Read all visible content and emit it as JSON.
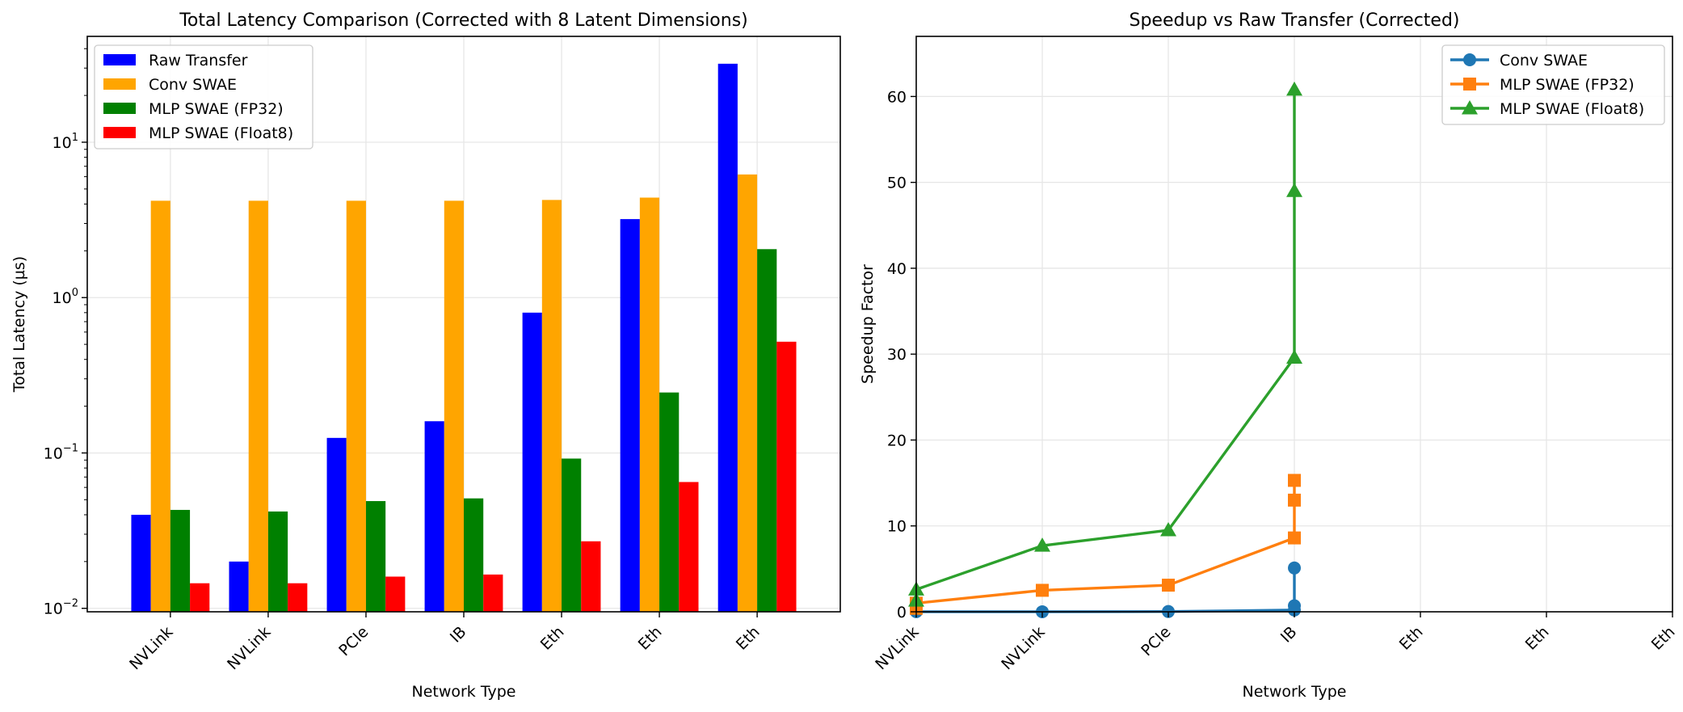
{
  "chart_data": [
    {
      "type": "bar",
      "title": "Total Latency Comparison (Corrected with 8 Latent Dimensions)",
      "xlabel": "Network Type",
      "ylabel": "Total Latency (µs)",
      "yscale": "log",
      "ylim": [
        0.0095,
        48
      ],
      "yticks": [
        {
          "base": "10",
          "exp": "−2",
          "value": 0.01
        },
        {
          "base": "10",
          "exp": "−1",
          "value": 0.1
        },
        {
          "base": "10",
          "exp": "0",
          "value": 1
        },
        {
          "base": "10",
          "exp": "1",
          "value": 10
        }
      ],
      "grid": true,
      "legend_position": "upper-left",
      "categories": [
        "NVLink",
        "NVLink",
        "PCIe",
        "IB",
        "Eth",
        "Eth",
        "Eth"
      ],
      "series": [
        {
          "name": "Raw Transfer",
          "color": "#0000ff",
          "values": [
            0.04,
            0.02,
            0.125,
            0.16,
            0.8,
            3.2,
            32
          ]
        },
        {
          "name": "Conv SWAE",
          "color": "#ffa500",
          "values": [
            4.2,
            4.2,
            4.2,
            4.2,
            4.25,
            4.4,
            6.2
          ]
        },
        {
          "name": "MLP SWAE (FP32)",
          "color": "#008000",
          "values": [
            0.043,
            0.042,
            0.049,
            0.051,
            0.092,
            0.245,
            2.05
          ]
        },
        {
          "name": "MLP SWAE (Float8)",
          "color": "#ff0000",
          "values": [
            0.0145,
            0.0145,
            0.016,
            0.0165,
            0.027,
            0.065,
            0.52
          ]
        }
      ]
    },
    {
      "type": "line",
      "title": "Speedup vs Raw Transfer (Corrected)",
      "xlabel": "Network Type",
      "ylabel": "Speedup Factor",
      "ylim": [
        0,
        67
      ],
      "yticks": [
        0,
        10,
        20,
        30,
        40,
        50,
        60
      ],
      "xlim": [
        0,
        6
      ],
      "categories": [
        "NVLink",
        "NVLink",
        "PCIe",
        "IB",
        "Eth",
        "Eth",
        "Eth"
      ],
      "grid": true,
      "legend_position": "upper-right",
      "series": [
        {
          "name": "Conv SWAE",
          "color": "#1f77b4",
          "marker": "circle",
          "x": [
            0,
            1,
            2,
            3,
            3,
            3
          ],
          "y": [
            0.01,
            0.005,
            0.03,
            0.2,
            0.7,
            5.1
          ]
        },
        {
          "name": "MLP SWAE (FP32)",
          "color": "#ff7f0e",
          "marker": "square",
          "x": [
            0,
            0,
            1,
            2,
            3,
            3,
            3
          ],
          "y": [
            0.4,
            1.0,
            2.5,
            3.1,
            8.6,
            13.0,
            15.3
          ]
        },
        {
          "name": "MLP SWAE (Float8)",
          "color": "#2ca02c",
          "marker": "triangle",
          "x": [
            0,
            0,
            1,
            2,
            3,
            3,
            3
          ],
          "y": [
            1.3,
            2.6,
            7.7,
            9.5,
            29.6,
            49.0,
            60.8
          ]
        }
      ]
    }
  ]
}
